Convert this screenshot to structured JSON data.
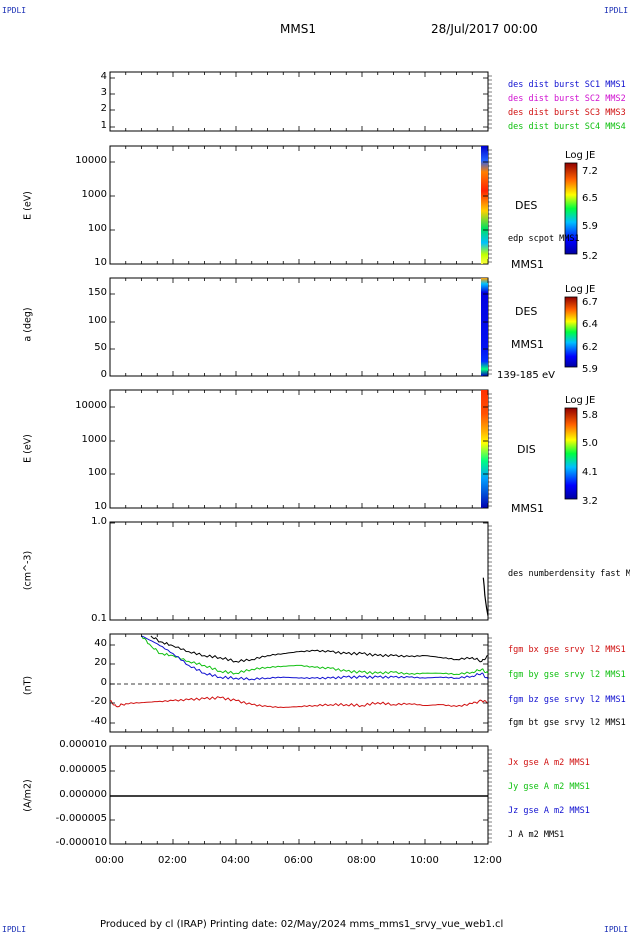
{
  "header": {
    "corner_left": "IPDLI",
    "corner_right": "IPDLI",
    "spacecraft": "MMS1",
    "datetime": "28/Jul/2017 00:00"
  },
  "footer": {
    "text": "Produced by cl (IRAP)   Printing date: 02/May/2024   mms_mms1_srvy_vue_web1.cl",
    "corner_left": "IPDLI",
    "corner_right": "IPDLI"
  },
  "time_axis": {
    "ticks": [
      "00:00",
      "02:00",
      "04:00",
      "06:00",
      "08:00",
      "10:00",
      "12:00"
    ],
    "range_hours": [
      0,
      12
    ]
  },
  "panels": {
    "p1": {
      "ylabel": "",
      "ticks": [
        "4",
        "3",
        "2",
        "1"
      ],
      "legend": [
        {
          "text": "des dist burst SC1 MMS1",
          "color": "#1010d0"
        },
        {
          "text": "des dist burst SC2 MMS2",
          "color": "#d010d0"
        },
        {
          "text": "des dist burst SC3 MMS3",
          "color": "#d01010"
        },
        {
          "text": "des dist burst SC4 MMS4",
          "color": "#10c010"
        }
      ]
    },
    "p2": {
      "ylabel": "E (eV)",
      "ticks": [
        "10000",
        "1000",
        "100",
        "10"
      ],
      "species": "DES",
      "sub_label": "edp scpot MMS1",
      "sat_label": "MMS1",
      "colorbar": {
        "title": "Log JE",
        "ticks": [
          "7.2",
          "6.5",
          "5.9",
          "5.2"
        ]
      }
    },
    "p3": {
      "ylabel": "a (deg)",
      "ticks": [
        "150",
        "100",
        "50",
        "0"
      ],
      "species": "DES",
      "sat_label": "MMS1",
      "energy_range": "139-185 eV",
      "colorbar": {
        "title": "Log JE",
        "ticks": [
          "6.7",
          "6.4",
          "6.2",
          "5.9"
        ]
      }
    },
    "p4": {
      "ylabel": "E (eV)",
      "ticks": [
        "10000",
        "1000",
        "100",
        "10"
      ],
      "species": "DIS",
      "sat_label": "MMS1",
      "colorbar": {
        "title": "Log JE",
        "ticks": [
          "5.8",
          "5.0",
          "4.1",
          "3.2"
        ]
      }
    },
    "p5": {
      "ylabel": "(cm^-3)",
      "ticks": [
        "1.0",
        "0.1"
      ],
      "legend": [
        {
          "text": "des numberdensity fast M",
          "color": "#000000"
        }
      ]
    },
    "p6": {
      "ylabel": "(nT)",
      "ticks": [
        "40",
        "20",
        "0",
        "-20",
        "-40"
      ],
      "legend": [
        {
          "text": "fgm bx gse srvy l2 MMS1",
          "color": "#d01010"
        },
        {
          "text": "fgm by gse srvy l2 MMS1",
          "color": "#10c010"
        },
        {
          "text": "fgm bz gse srvy l2 MMS1",
          "color": "#1010d0"
        },
        {
          "text": "fgm bt gse srvy l2 MMS1",
          "color": "#000000"
        }
      ]
    },
    "p7": {
      "ylabel": "(A/m2)",
      "ticks": [
        "0.000010",
        "0.000005",
        "0.000000",
        "-0.000005",
        "-0.000010"
      ],
      "legend": [
        {
          "text": "Jx gse A m2 MMS1",
          "color": "#d01010"
        },
        {
          "text": "Jy gse A m2 MMS1",
          "color": "#10c010"
        },
        {
          "text": "Jz gse A m2 MMS1",
          "color": "#1010d0"
        },
        {
          "text": "J A m2 MMS1",
          "color": "#000000"
        }
      ]
    }
  },
  "chart_data": [
    {
      "type": "line",
      "panel": "magnetic field (nT)",
      "ylim": [
        -50,
        50
      ],
      "xlim_hours": [
        0,
        12
      ],
      "series": [
        {
          "name": "fgm bx gse srvy l2 MMS1",
          "color": "#d01010",
          "x": [
            0,
            0.2,
            0.5,
            1,
            1.5,
            2,
            2.5,
            3,
            3.5,
            4,
            4.5,
            5,
            5.5,
            6,
            6.5,
            7,
            7.5,
            8,
            8.5,
            9,
            9.5,
            10,
            10.5,
            11,
            11.5,
            11.8,
            12
          ],
          "y": [
            -18,
            -24,
            -21,
            -20,
            -19,
            -18,
            -17,
            -16,
            -15,
            -18,
            -22,
            -24,
            -25,
            -24,
            -23,
            -22,
            -22,
            -23,
            -20,
            -22,
            -21,
            -23,
            -22,
            -24,
            -21,
            -18,
            -20
          ]
        },
        {
          "name": "fgm by gse srvy l2 MMS1",
          "color": "#10c010",
          "x": [
            1,
            1.3,
            1.6,
            2,
            2.5,
            3,
            3.5,
            4,
            4.5,
            5,
            5.5,
            6,
            6.5,
            7,
            7.5,
            8,
            8.5,
            9,
            9.5,
            10,
            10.5,
            11,
            11.5,
            11.8,
            12
          ],
          "y": [
            48,
            38,
            30,
            28,
            22,
            18,
            12,
            10,
            14,
            16,
            17,
            18,
            16,
            15,
            12,
            11,
            10,
            11,
            9,
            10,
            10,
            9,
            11,
            14,
            10
          ]
        },
        {
          "name": "fgm bz gse srvy l2 MMS1",
          "color": "#1010d0",
          "x": [
            1,
            1.5,
            2,
            2.5,
            3,
            3.5,
            4,
            4.5,
            5,
            5.5,
            6,
            6.5,
            7,
            7.5,
            8,
            8.5,
            9,
            9.5,
            10,
            10.5,
            11,
            11.5,
            11.8,
            12
          ],
          "y": [
            48,
            40,
            30,
            18,
            10,
            6,
            5,
            4,
            5,
            6,
            5,
            5,
            5,
            6,
            6,
            6,
            6,
            6,
            5,
            6,
            5,
            7,
            10,
            4
          ]
        },
        {
          "name": "fgm bt gse srvy l2 MMS1",
          "color": "#000000",
          "x": [
            1.3,
            1.6,
            2,
            2.5,
            3,
            3.5,
            4,
            4.5,
            5,
            5.5,
            6,
            6.5,
            7,
            7.5,
            8,
            8.5,
            9,
            9.5,
            10,
            10.5,
            11,
            11.5,
            11.8,
            12
          ],
          "y": [
            48,
            42,
            38,
            32,
            28,
            26,
            22,
            24,
            28,
            30,
            32,
            33,
            32,
            30,
            30,
            28,
            28,
            27,
            28,
            26,
            24,
            26,
            22,
            28
          ]
        }
      ]
    },
    {
      "type": "line",
      "panel": "number density (cm^-3)",
      "ylim": [
        0.1,
        1.0
      ],
      "series": [
        {
          "name": "des numberdensity fast M",
          "color": "#000000",
          "x": [
            11.85,
            11.88,
            11.9,
            11.93,
            11.96,
            12
          ],
          "y": [
            0.27,
            0.22,
            0.18,
            0.15,
            0.13,
            0.11
          ]
        }
      ]
    },
    {
      "type": "line",
      "panel": "current density (A/m2)",
      "ylim": [
        -1e-05,
        1e-05
      ],
      "series": [
        {
          "name": "J A m2 MMS1",
          "color": "#000000",
          "x": [
            0,
            12
          ],
          "y": [
            0,
            0
          ]
        }
      ]
    }
  ]
}
